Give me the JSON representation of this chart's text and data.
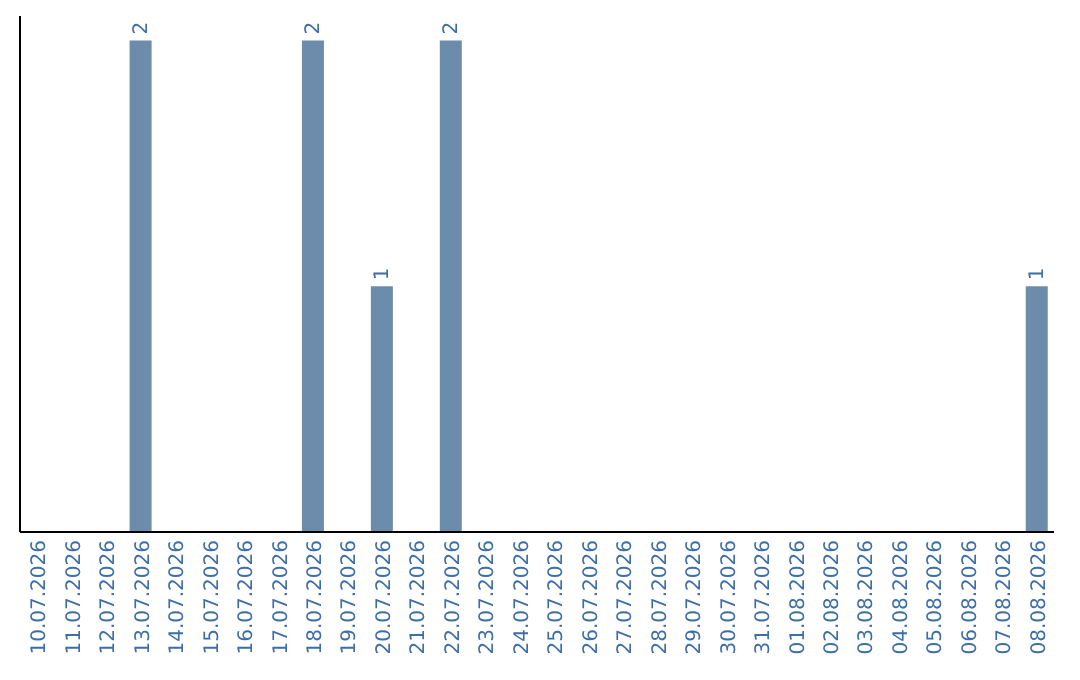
{
  "chart_data": {
    "type": "bar",
    "categories": [
      "10.07.2026",
      "11.07.2026",
      "12.07.2026",
      "13.07.2026",
      "14.07.2026",
      "15.07.2026",
      "16.07.2026",
      "17.07.2026",
      "18.07.2026",
      "19.07.2026",
      "20.07.2026",
      "21.07.2026",
      "22.07.2026",
      "23.07.2026",
      "24.07.2026",
      "25.07.2026",
      "26.07.2026",
      "27.07.2026",
      "28.07.2026",
      "29.07.2026",
      "30.07.2026",
      "31.07.2026",
      "01.08.2026",
      "02.08.2026",
      "03.08.2026",
      "04.08.2026",
      "05.08.2026",
      "06.08.2026",
      "07.08.2026",
      "08.08.2026"
    ],
    "values": [
      0,
      0,
      0,
      2,
      0,
      0,
      0,
      0,
      2,
      0,
      1,
      0,
      2,
      0,
      0,
      0,
      0,
      0,
      0,
      0,
      0,
      0,
      0,
      0,
      0,
      0,
      0,
      0,
      0,
      1
    ],
    "value_labels": [
      null,
      null,
      null,
      "2",
      null,
      null,
      null,
      null,
      "2",
      null,
      "1",
      null,
      "2",
      null,
      null,
      null,
      null,
      null,
      null,
      null,
      null,
      null,
      null,
      null,
      null,
      null,
      null,
      null,
      null,
      "1"
    ],
    "color": "#6b8cab",
    "grid": false,
    "legend": false
  }
}
